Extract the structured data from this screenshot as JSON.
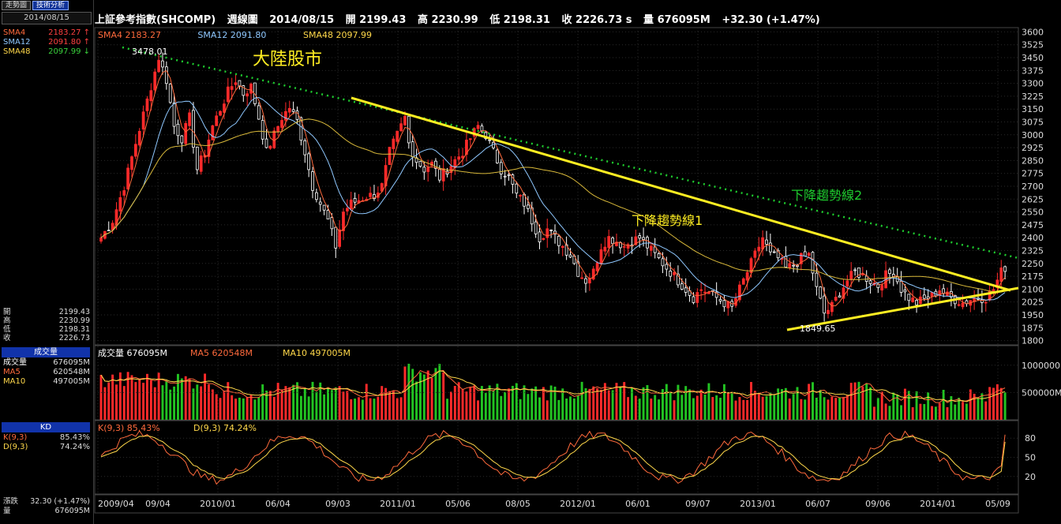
{
  "tabs": [
    "走勢圖",
    "技術分析"
  ],
  "side": {
    "date": "2014/08/15",
    "sma": [
      {
        "label": "SMA4",
        "value": "2183.27",
        "arrow": "up",
        "color": "#ff6a3c"
      },
      {
        "label": "SMA12",
        "value": "2091.80",
        "arrow": "up",
        "color": "#8fc8ff"
      },
      {
        "label": "SMA48",
        "value": "2097.99",
        "arrow": "down",
        "color": "#ffd84a"
      }
    ],
    "ohlc": [
      {
        "label": "開",
        "value": "2199.43"
      },
      {
        "label": "高",
        "value": "2230.99"
      },
      {
        "label": "低",
        "value": "2198.31"
      },
      {
        "label": "收",
        "value": "2226.73"
      }
    ],
    "volume_head": "成交量",
    "volume": [
      {
        "label": "成交量",
        "value": "676095M",
        "color": "#ffffff"
      },
      {
        "label": "MA5",
        "value": "620548M",
        "color": "#ff6a3c"
      },
      {
        "label": "MA10",
        "value": "497005M",
        "color": "#ffd84a"
      }
    ],
    "kd_head": "KD",
    "kd": [
      {
        "label": "K(9,3)",
        "value": "85.43%",
        "color": "#ff6a3c"
      },
      {
        "label": "D(9,3)",
        "value": "74.24%",
        "color": "#ffd84a"
      }
    ],
    "bottom": [
      {
        "label": "漲跌",
        "value": "32.30 (+1.47%)"
      },
      {
        "label": "量",
        "value": "676095M"
      }
    ]
  },
  "header": {
    "name": "上証參考指數(SHCOMP)",
    "period": "週線圖",
    "date": "2014/08/15",
    "open": "開 2199.43",
    "high": "高 2230.99",
    "low": "低 2198.31",
    "close": "收 2226.73 s",
    "volume": "量 676095M",
    "change": "+32.30 (+1.47%)"
  },
  "chart_data": {
    "type": "candlestick",
    "annotation_title": "大陸股市",
    "trendline_labels": [
      "下降趨勢線1",
      "下降趨勢線2"
    ],
    "peak_label": "3478.01",
    "trough_label": "1849.65",
    "y_ticks": [
      3600,
      3525,
      3450,
      3375,
      3300,
      3225,
      3150,
      3075,
      3000,
      2925,
      2850,
      2775,
      2700,
      2625,
      2550,
      2475,
      2400,
      2325,
      2250,
      2175,
      2100,
      2025,
      1950,
      1875,
      1800
    ],
    "ylim": [
      1775,
      3625
    ],
    "x_ticks": [
      "2009/04",
      "09/04",
      "2010/01",
      "06/04",
      "09/03",
      "2011/01",
      "05/06",
      "08/05",
      "2012/01",
      "06/01",
      "09/07",
      "2013/01",
      "06/07",
      "09/06",
      "2014/01",
      "05/09"
    ],
    "legend": [
      {
        "text": "SMA4 2183.27",
        "color": "#ff6a3c"
      },
      {
        "text": "SMA12 2091.80",
        "color": "#8fc8ff"
      },
      {
        "text": "SMA48 2097.99",
        "color": "#ffd84a"
      }
    ],
    "close_path": [
      [
        0,
        2400
      ],
      [
        3,
        2500
      ],
      [
        6,
        2700
      ],
      [
        9,
        2950
      ],
      [
        12,
        3200
      ],
      [
        15,
        3450
      ],
      [
        17,
        3320
      ],
      [
        19,
        3050
      ],
      [
        21,
        2980
      ],
      [
        23,
        3100
      ],
      [
        25,
        2800
      ],
      [
        27,
        2900
      ],
      [
        29,
        3050
      ],
      [
        31,
        3150
      ],
      [
        33,
        3250
      ],
      [
        35,
        3320
      ],
      [
        37,
        3240
      ],
      [
        39,
        3280
      ],
      [
        41,
        3100
      ],
      [
        43,
        2900
      ],
      [
        45,
        3000
      ],
      [
        47,
        3100
      ],
      [
        49,
        3160
      ],
      [
        51,
        3080
      ],
      [
        53,
        2900
      ],
      [
        55,
        2700
      ],
      [
        57,
        2600
      ],
      [
        59,
        2500
      ],
      [
        61,
        2350
      ],
      [
        63,
        2550
      ],
      [
        65,
        2600
      ],
      [
        67,
        2620
      ],
      [
        69,
        2640
      ],
      [
        71,
        2650
      ],
      [
        73,
        2700
      ],
      [
        75,
        2900
      ],
      [
        77,
        3000
      ],
      [
        79,
        3100
      ],
      [
        80,
        2950
      ],
      [
        82,
        2850
      ],
      [
        84,
        2800
      ],
      [
        86,
        2830
      ],
      [
        88,
        2750
      ],
      [
        90,
        2800
      ],
      [
        92,
        2850
      ],
      [
        94,
        2900
      ],
      [
        96,
        2980
      ],
      [
        98,
        3050
      ],
      [
        100,
        3000
      ],
      [
        102,
        2900
      ],
      [
        104,
        2800
      ],
      [
        106,
        2750
      ],
      [
        108,
        2650
      ],
      [
        110,
        2600
      ],
      [
        112,
        2500
      ],
      [
        114,
        2400
      ],
      [
        116,
        2450
      ],
      [
        118,
        2400
      ],
      [
        120,
        2350
      ],
      [
        122,
        2300
      ],
      [
        124,
        2200
      ],
      [
        126,
        2150
      ],
      [
        128,
        2200
      ],
      [
        130,
        2350
      ],
      [
        132,
        2400
      ],
      [
        134,
        2380
      ],
      [
        136,
        2350
      ],
      [
        138,
        2380
      ],
      [
        140,
        2400
      ],
      [
        142,
        2350
      ],
      [
        144,
        2300
      ],
      [
        146,
        2250
      ],
      [
        148,
        2200
      ],
      [
        150,
        2150
      ],
      [
        152,
        2100
      ],
      [
        154,
        2050
      ],
      [
        156,
        2100
      ],
      [
        158,
        2080
      ],
      [
        160,
        2050
      ],
      [
        162,
        2020
      ],
      [
        164,
        1990
      ],
      [
        166,
        2100
      ],
      [
        168,
        2200
      ],
      [
        170,
        2300
      ],
      [
        172,
        2400
      ],
      [
        174,
        2300
      ],
      [
        176,
        2280
      ],
      [
        178,
        2220
      ],
      [
        180,
        2240
      ],
      [
        182,
        2280
      ],
      [
        184,
        2300
      ],
      [
        186,
        2100
      ],
      [
        188,
        1960
      ],
      [
        190,
        2000
      ],
      [
        192,
        2080
      ],
      [
        194,
        2150
      ],
      [
        196,
        2200
      ],
      [
        198,
        2180
      ],
      [
        200,
        2150
      ],
      [
        202,
        2120
      ],
      [
        204,
        2180
      ],
      [
        206,
        2200
      ],
      [
        208,
        2100
      ],
      [
        210,
        2050
      ],
      [
        212,
        2020
      ],
      [
        214,
        2040
      ],
      [
        216,
        2060
      ],
      [
        218,
        2100
      ],
      [
        220,
        2060
      ],
      [
        222,
        2040
      ],
      [
        224,
        2020
      ],
      [
        226,
        2040
      ],
      [
        228,
        2050
      ],
      [
        230,
        2050
      ],
      [
        232,
        2100
      ],
      [
        234,
        2200
      ],
      [
        235,
        2227
      ]
    ],
    "volume_ticks": [
      "1000000M",
      "500000M"
    ],
    "volume_legend": [
      {
        "text": "成交量 676095M",
        "color": "#ffffff"
      },
      {
        "text": "MA5 620548M",
        "color": "#ff6a3c"
      },
      {
        "text": "MA10 497005M",
        "color": "#ffd84a"
      }
    ],
    "kd_ticks": [
      80,
      50,
      20
    ],
    "kd_legend": [
      {
        "text": "K(9,3) 85.43%",
        "color": "#ff6a3c"
      },
      {
        "text": "D(9,3) 74.24%",
        "color": "#ffd84a"
      }
    ]
  }
}
